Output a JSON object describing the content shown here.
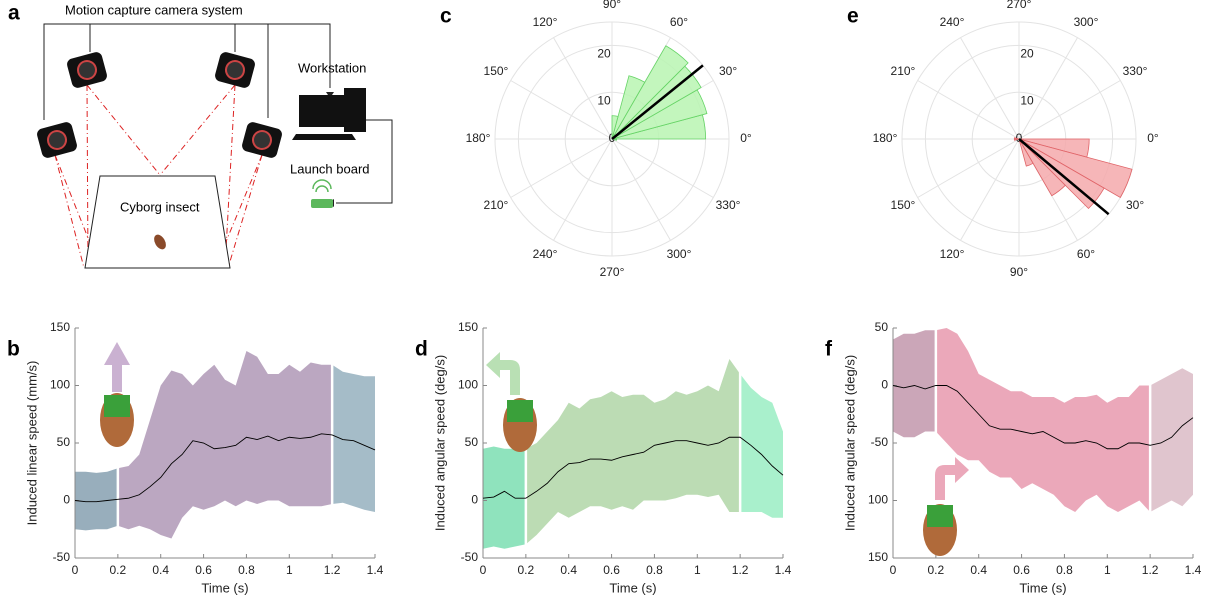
{
  "diagram": {
    "panel_label": "a",
    "title": "Motion capture camera system",
    "workstation": "Workstation",
    "launch_board": "Launch board",
    "insect": "Cyborg insect"
  },
  "chart_data": [
    {
      "type": "line",
      "panel_label": "b",
      "xlabel": "Time (s)",
      "ylabel": "Induced linear speed (mm/s)",
      "xlim": [
        0,
        1.4
      ],
      "xticks": [
        0,
        0.2,
        0.4,
        0.6,
        0.8,
        1,
        1.2,
        1.4
      ],
      "ylim": [
        -50,
        150
      ],
      "yticks": [
        -50,
        0,
        50,
        100,
        150
      ],
      "x": [
        0,
        0.05,
        0.1,
        0.15,
        0.2,
        0.25,
        0.3,
        0.35,
        0.4,
        0.45,
        0.5,
        0.55,
        0.6,
        0.65,
        0.7,
        0.75,
        0.8,
        0.85,
        0.9,
        0.95,
        1,
        1.05,
        1.1,
        1.15,
        1.2,
        1.25,
        1.3,
        1.35,
        1.4
      ],
      "series": [
        {
          "color": "#000000",
          "values": [
            0,
            -1,
            -1,
            0,
            1,
            2,
            5,
            12,
            20,
            32,
            40,
            52,
            50,
            45,
            46,
            48,
            55,
            53,
            56,
            52,
            55,
            54,
            55,
            58,
            57,
            53,
            52,
            48,
            44
          ]
        }
      ],
      "band": {
        "upper": [
          25,
          25,
          24,
          25,
          28,
          30,
          40,
          70,
          100,
          113,
          110,
          100,
          110,
          118,
          105,
          100,
          130,
          125,
          110,
          110,
          118,
          112,
          120,
          118,
          118,
          112,
          110,
          108,
          108
        ],
        "lower": [
          -25,
          -26,
          -25,
          -25,
          -22,
          -25,
          -22,
          -25,
          -30,
          -33,
          -15,
          -5,
          -8,
          -5,
          0,
          -5,
          0,
          -3,
          0,
          0,
          -5,
          -5,
          -5,
          -5,
          -3,
          -2,
          -5,
          -8,
          -10
        ]
      },
      "phases": [
        {
          "start": 0,
          "end": 0.2,
          "color": "#98aebc"
        },
        {
          "start": 0.2,
          "end": 1.2,
          "color": "#bba7c1"
        },
        {
          "start": 1.2,
          "end": 1.4,
          "color": "#a5bcc8"
        }
      ]
    },
    {
      "type": "line",
      "panel_label": "d",
      "xlabel": "Time (s)",
      "ylabel": "Induced angular speed (deg/s)",
      "xlim": [
        0,
        1.4
      ],
      "xticks": [
        0,
        0.2,
        0.4,
        0.6,
        0.8,
        1,
        1.2,
        1.4
      ],
      "ylim": [
        -50,
        150
      ],
      "yticks": [
        -50,
        0,
        50,
        100,
        150
      ],
      "x": [
        0,
        0.05,
        0.1,
        0.15,
        0.2,
        0.25,
        0.3,
        0.35,
        0.4,
        0.45,
        0.5,
        0.55,
        0.6,
        0.65,
        0.7,
        0.75,
        0.8,
        0.85,
        0.9,
        0.95,
        1,
        1.05,
        1.1,
        1.15,
        1.2,
        1.25,
        1.3,
        1.35,
        1.4
      ],
      "series": [
        {
          "color": "#000000",
          "values": [
            2,
            3,
            8,
            2,
            2,
            8,
            15,
            25,
            32,
            33,
            36,
            36,
            35,
            38,
            40,
            42,
            48,
            50,
            52,
            52,
            50,
            48,
            50,
            55,
            55,
            48,
            40,
            30,
            22
          ]
        }
      ],
      "band": {
        "upper": [
          45,
          47,
          45,
          45,
          45,
          50,
          60,
          70,
          85,
          80,
          88,
          90,
          95,
          90,
          92,
          92,
          85,
          88,
          95,
          92,
          95,
          100,
          95,
          123,
          110,
          98,
          90,
          85,
          60
        ],
        "lower": [
          -42,
          -40,
          -42,
          -40,
          -38,
          -30,
          -20,
          -10,
          -15,
          -10,
          -5,
          -5,
          -8,
          -5,
          -8,
          0,
          0,
          0,
          2,
          5,
          5,
          3,
          5,
          -10,
          -10,
          -10,
          -10,
          -15,
          -15
        ]
      },
      "phases": [
        {
          "start": 0,
          "end": 0.2,
          "color": "#8fe3bd"
        },
        {
          "start": 0.2,
          "end": 1.2,
          "color": "#bcdcb4"
        },
        {
          "start": 1.2,
          "end": 1.4,
          "color": "#a9f0cc"
        }
      ]
    },
    {
      "type": "line",
      "panel_label": "f",
      "xlabel": "Time (s)",
      "ylabel": "Induced angular speed (deg/s)",
      "xlim": [
        0,
        1.4
      ],
      "xticks": [
        0,
        0.2,
        0.4,
        0.6,
        0.8,
        1,
        1.2,
        1.4
      ],
      "ylim": [
        -150,
        50
      ],
      "yticks": [
        {
          "value": -150,
          "label": "150"
        },
        {
          "value": -100,
          "label": "100"
        },
        -50,
        0,
        50
      ],
      "x": [
        0,
        0.05,
        0.1,
        0.15,
        0.2,
        0.25,
        0.3,
        0.35,
        0.4,
        0.45,
        0.5,
        0.55,
        0.6,
        0.65,
        0.7,
        0.75,
        0.8,
        0.85,
        0.9,
        0.95,
        1,
        1.05,
        1.1,
        1.15,
        1.2,
        1.25,
        1.3,
        1.35,
        1.4
      ],
      "series": [
        {
          "color": "#000000",
          "values": [
            0,
            -2,
            0,
            -3,
            0,
            0,
            -5,
            -15,
            -25,
            -35,
            -38,
            -38,
            -40,
            -42,
            -40,
            -45,
            -50,
            -50,
            -48,
            -50,
            -55,
            -55,
            -50,
            -50,
            -52,
            -50,
            -45,
            -35,
            -28
          ]
        }
      ],
      "band": {
        "upper": [
          40,
          45,
          45,
          48,
          48,
          50,
          45,
          30,
          10,
          5,
          0,
          -5,
          -5,
          -10,
          -10,
          -10,
          -15,
          -10,
          -10,
          -8,
          -15,
          -10,
          -10,
          0,
          0,
          5,
          10,
          15,
          10
        ],
        "lower": [
          -40,
          -45,
          -45,
          -40,
          -40,
          -50,
          -60,
          -65,
          -65,
          -75,
          -80,
          -80,
          -90,
          -85,
          -90,
          -95,
          -105,
          -110,
          -100,
          -95,
          -105,
          -110,
          -105,
          -100,
          -110,
          -105,
          -100,
          -105,
          -95
        ]
      },
      "phases": [
        {
          "start": 0,
          "end": 0.2,
          "color": "#cba6b8"
        },
        {
          "start": 0.2,
          "end": 1.2,
          "color": "#eba8ba"
        },
        {
          "start": 1.2,
          "end": 1.4,
          "color": "#e0c5ce"
        }
      ]
    },
    {
      "type": "polar_histogram",
      "panel_label": "c",
      "direction": "counterclockwise",
      "color": "#b8f5b2",
      "edge_color": "#66d466",
      "rlim": [
        0,
        25
      ],
      "rticks": [
        10,
        20
      ],
      "bins": [
        0,
        15,
        30,
        45,
        60,
        75,
        90,
        105,
        120,
        135,
        150,
        165,
        180,
        195,
        210,
        225,
        240,
        255,
        270,
        285,
        300,
        315,
        330,
        345,
        360
      ],
      "counts": [
        20,
        21,
        22,
        23,
        14,
        5,
        0,
        0,
        0,
        0,
        0,
        0,
        0,
        0,
        0,
        0,
        0,
        0,
        0,
        0,
        0,
        0,
        0,
        1
      ],
      "mean_angle": 39,
      "mean_length": 25,
      "angle_ticks": [
        {
          "value": 0,
          "label": "0°"
        },
        {
          "value": 30,
          "label": "30°"
        },
        {
          "value": 60,
          "label": "60°"
        },
        {
          "value": 90,
          "label": "90°"
        },
        {
          "value": 120,
          "label": "120°"
        },
        {
          "value": 150,
          "label": "150°"
        },
        {
          "value": 180,
          "label": "180°"
        },
        {
          "value": 210,
          "label": "210°"
        },
        {
          "value": 240,
          "label": "240°"
        },
        {
          "value": 270,
          "label": "270°"
        },
        {
          "value": 300,
          "label": "300°"
        },
        {
          "value": 330,
          "label": "330°"
        }
      ]
    },
    {
      "type": "polar_histogram",
      "panel_label": "e",
      "direction": "clockwise",
      "color": "#f5a9ab",
      "edge_color": "#e06468",
      "rlim": [
        0,
        25
      ],
      "rticks": [
        10,
        20
      ],
      "bins": [
        0,
        15,
        30,
        45,
        60,
        75,
        90,
        105,
        120,
        135,
        150,
        165,
        180,
        195,
        210,
        225,
        240,
        255,
        270,
        285,
        300,
        315,
        330,
        345,
        360
      ],
      "counts": [
        15,
        25,
        21,
        14,
        6,
        0,
        0,
        0,
        0,
        0,
        0,
        1,
        1,
        0,
        0,
        0,
        0,
        0,
        0,
        0,
        0,
        0,
        0,
        0
      ],
      "mean_angle": 40,
      "mean_length": 25,
      "angle_ticks": [
        {
          "value": 0,
          "label": "0°"
        },
        {
          "value": 30,
          "label": "30°"
        },
        {
          "value": 60,
          "label": "60°"
        },
        {
          "value": 90,
          "label": "90°"
        },
        {
          "value": 120,
          "label": "120°"
        },
        {
          "value": 150,
          "label": "150°"
        },
        {
          "value": 180,
          "label": "180°"
        },
        {
          "value": 210,
          "label": "210°"
        },
        {
          "value": 240,
          "label": "240°"
        },
        {
          "value": 270,
          "label": "270°"
        },
        {
          "value": 300,
          "label": "300°"
        },
        {
          "value": 330,
          "label": "330°"
        }
      ]
    }
  ]
}
